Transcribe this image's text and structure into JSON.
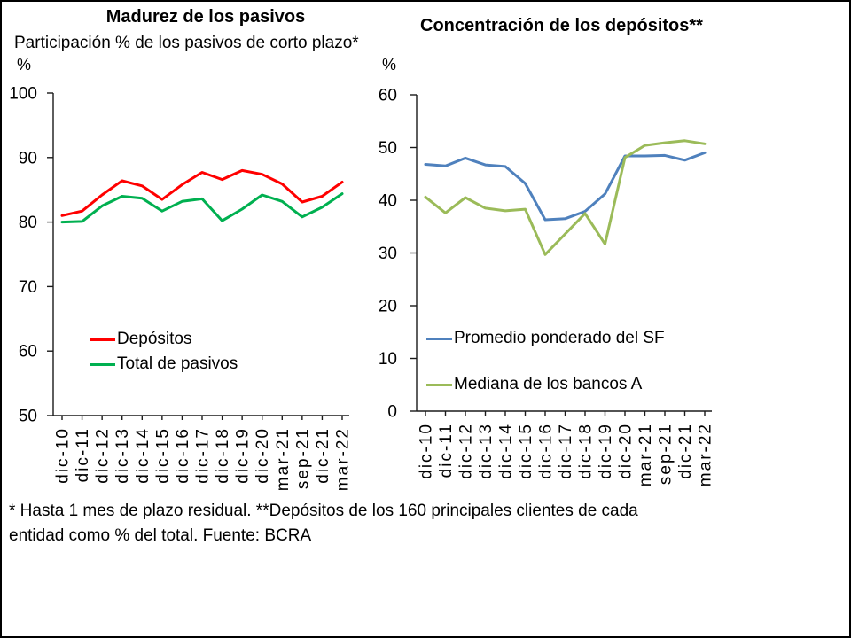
{
  "footnote": "* Hasta 1 mes de plazo residual. **Depósitos de los 160 principales clientes de cada entidad como % del total. Fuente: BCRA",
  "chart_data": [
    {
      "type": "line",
      "title": "Madurez de los pasivos",
      "subtitle": "Participación % de los pasivos de corto plazo*",
      "xlabel": "",
      "ylabel": "%",
      "ylim": [
        50,
        100
      ],
      "ytick_step": 10,
      "grid": false,
      "legend_position": "inside-bottom-left",
      "categories": [
        "dic-10",
        "dic-11",
        "dic-12",
        "dic-13",
        "dic-14",
        "dic-15",
        "dic-16",
        "dic-17",
        "dic-18",
        "dic-19",
        "dic-20",
        "mar-21",
        "sep-21",
        "dic-21",
        "mar-22"
      ],
      "series": [
        {
          "name": "Depósitos",
          "color": "#ff0000",
          "values": [
            81.0,
            81.7,
            84.2,
            86.4,
            85.6,
            83.5,
            85.8,
            87.7,
            86.6,
            88.0,
            87.4,
            85.9,
            83.1,
            84.0,
            86.2
          ]
        },
        {
          "name": "Total de pasivos",
          "color": "#00b050",
          "values": [
            80.0,
            80.1,
            82.5,
            84.0,
            83.7,
            81.7,
            83.2,
            83.6,
            80.2,
            82.0,
            84.2,
            83.2,
            80.8,
            82.3,
            84.4
          ]
        }
      ]
    },
    {
      "type": "line",
      "title": "Concentración de los depósitos**",
      "xlabel": "",
      "ylabel": "%",
      "ylim": [
        0,
        60
      ],
      "ytick_step": 10,
      "grid": false,
      "legend_position": "inside-bottom-left",
      "categories": [
        "dic-10",
        "dic-11",
        "dic-12",
        "dic-13",
        "dic-14",
        "dic-15",
        "dic-16",
        "dic-17",
        "dic-18",
        "dic-19",
        "dic-20",
        "mar-21",
        "sep-21",
        "dic-21",
        "mar-22"
      ],
      "series": [
        {
          "name": "Promedio ponderado del SF",
          "color": "#4f81bd",
          "values": [
            46.8,
            46.5,
            48.0,
            46.7,
            46.4,
            43.2,
            36.3,
            36.5,
            37.9,
            41.2,
            48.4,
            48.4,
            48.5,
            47.6,
            49.0
          ]
        },
        {
          "name": "Mediana de los bancos A",
          "color": "#9bbb59",
          "values": [
            40.6,
            37.6,
            40.5,
            38.5,
            38.0,
            38.3,
            29.7,
            33.6,
            37.5,
            31.7,
            48.1,
            50.4,
            50.9,
            51.3,
            50.7
          ]
        }
      ]
    }
  ]
}
